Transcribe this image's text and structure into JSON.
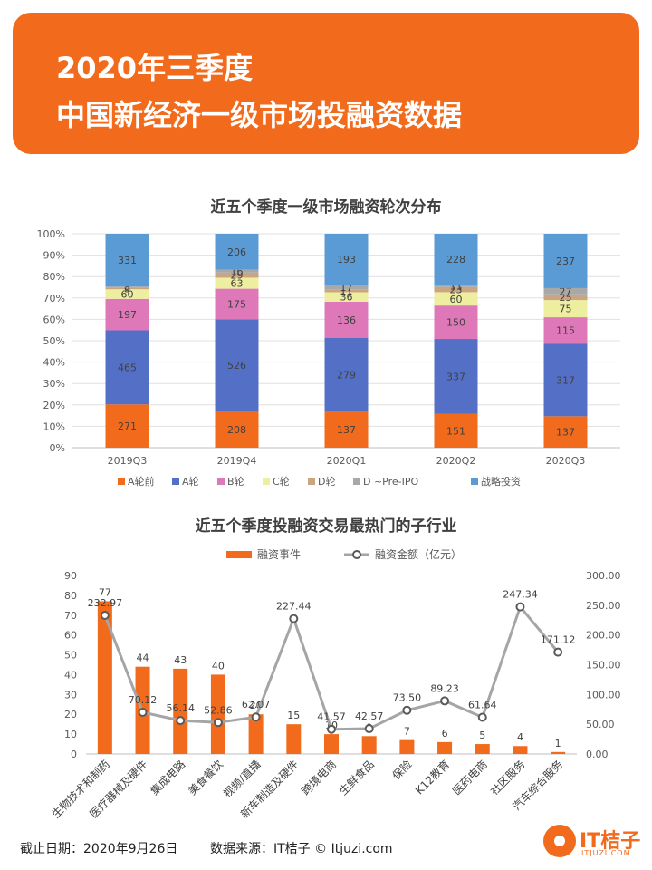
{
  "header": {
    "line1": "2020年三季度",
    "line2": "中国新经济一级市场投融资数据"
  },
  "footer": {
    "date": "截止日期：2020年9月26日",
    "source": "数据来源：IT桔子 © Itjuzi.com"
  },
  "logo": {
    "name": "IT桔子",
    "url": "ITJUZI.COM"
  },
  "chart_data": [
    {
      "type": "bar",
      "stacked": true,
      "percent": true,
      "title": "近五个季度一级市场融资轮次分布",
      "categories": [
        "2019Q3",
        "2019Q4",
        "2020Q1",
        "2020Q2",
        "2020Q3"
      ],
      "y_ticks": [
        "0%",
        "10%",
        "20%",
        "30%",
        "40%",
        "50%",
        "60%",
        "70%",
        "80%",
        "90%",
        "100%"
      ],
      "legend_position": "bottom",
      "series": [
        {
          "name": "A轮前",
          "color": "#f26a1b",
          "values": [
            271,
            208,
            137,
            151,
            137
          ]
        },
        {
          "name": "A轮",
          "color": "#5470c6",
          "values": [
            465,
            526,
            279,
            337,
            317
          ]
        },
        {
          "name": "B轮",
          "color": "#de78b8",
          "values": [
            197,
            175,
            136,
            150,
            115
          ]
        },
        {
          "name": "C轮",
          "color": "#eeeea0",
          "values": [
            60,
            63,
            36,
            60,
            75
          ]
        },
        {
          "name": "D轮",
          "color": "#c9a582",
          "values": [
            9,
            29,
            11,
            23,
            25
          ]
        },
        {
          "name": "D ~Pre-IPO",
          "color": "#a8a8a8",
          "values": [
            8,
            16,
            17,
            11,
            27
          ]
        },
        {
          "name": "战略投资",
          "color": "#5b9bd5",
          "values": [
            331,
            206,
            193,
            228,
            237
          ]
        }
      ]
    },
    {
      "type": "bar",
      "title": "近五个季度投融资交易最热门的子行业",
      "categories": [
        "生物技术和制药",
        "医疗器械及硬件",
        "集成电路",
        "美食餐饮",
        "视频/直播",
        "新车制造及硬件",
        "跨境电商",
        "生鲜食品",
        "保险",
        "K12教育",
        "医药电商",
        "社区服务",
        "汽车综合服务"
      ],
      "legend_position": "top",
      "series": [
        {
          "name": "融资事件",
          "type": "bar",
          "axis": "left",
          "color": "#f26a1b",
          "values": [
            77,
            44,
            43,
            40,
            20,
            15,
            10,
            9,
            7,
            6,
            5,
            4,
            1
          ]
        },
        {
          "name": "融资金额（亿元）",
          "type": "line",
          "axis": "right",
          "color": "#a5a5a5",
          "values": [
            232.97,
            70.12,
            56.14,
            52.86,
            62.07,
            227.44,
            41.57,
            42.57,
            73.5,
            89.23,
            61.64,
            247.34,
            171.12
          ]
        }
      ],
      "left_ticks": [
        "0",
        "10",
        "20",
        "30",
        "40",
        "50",
        "60",
        "70",
        "80",
        "90"
      ],
      "right_ticks": [
        "0.00",
        "50.00",
        "100.00",
        "150.00",
        "200.00",
        "250.00",
        "300.00"
      ],
      "left_range": [
        0,
        90
      ],
      "right_range": [
        0,
        300
      ]
    }
  ]
}
